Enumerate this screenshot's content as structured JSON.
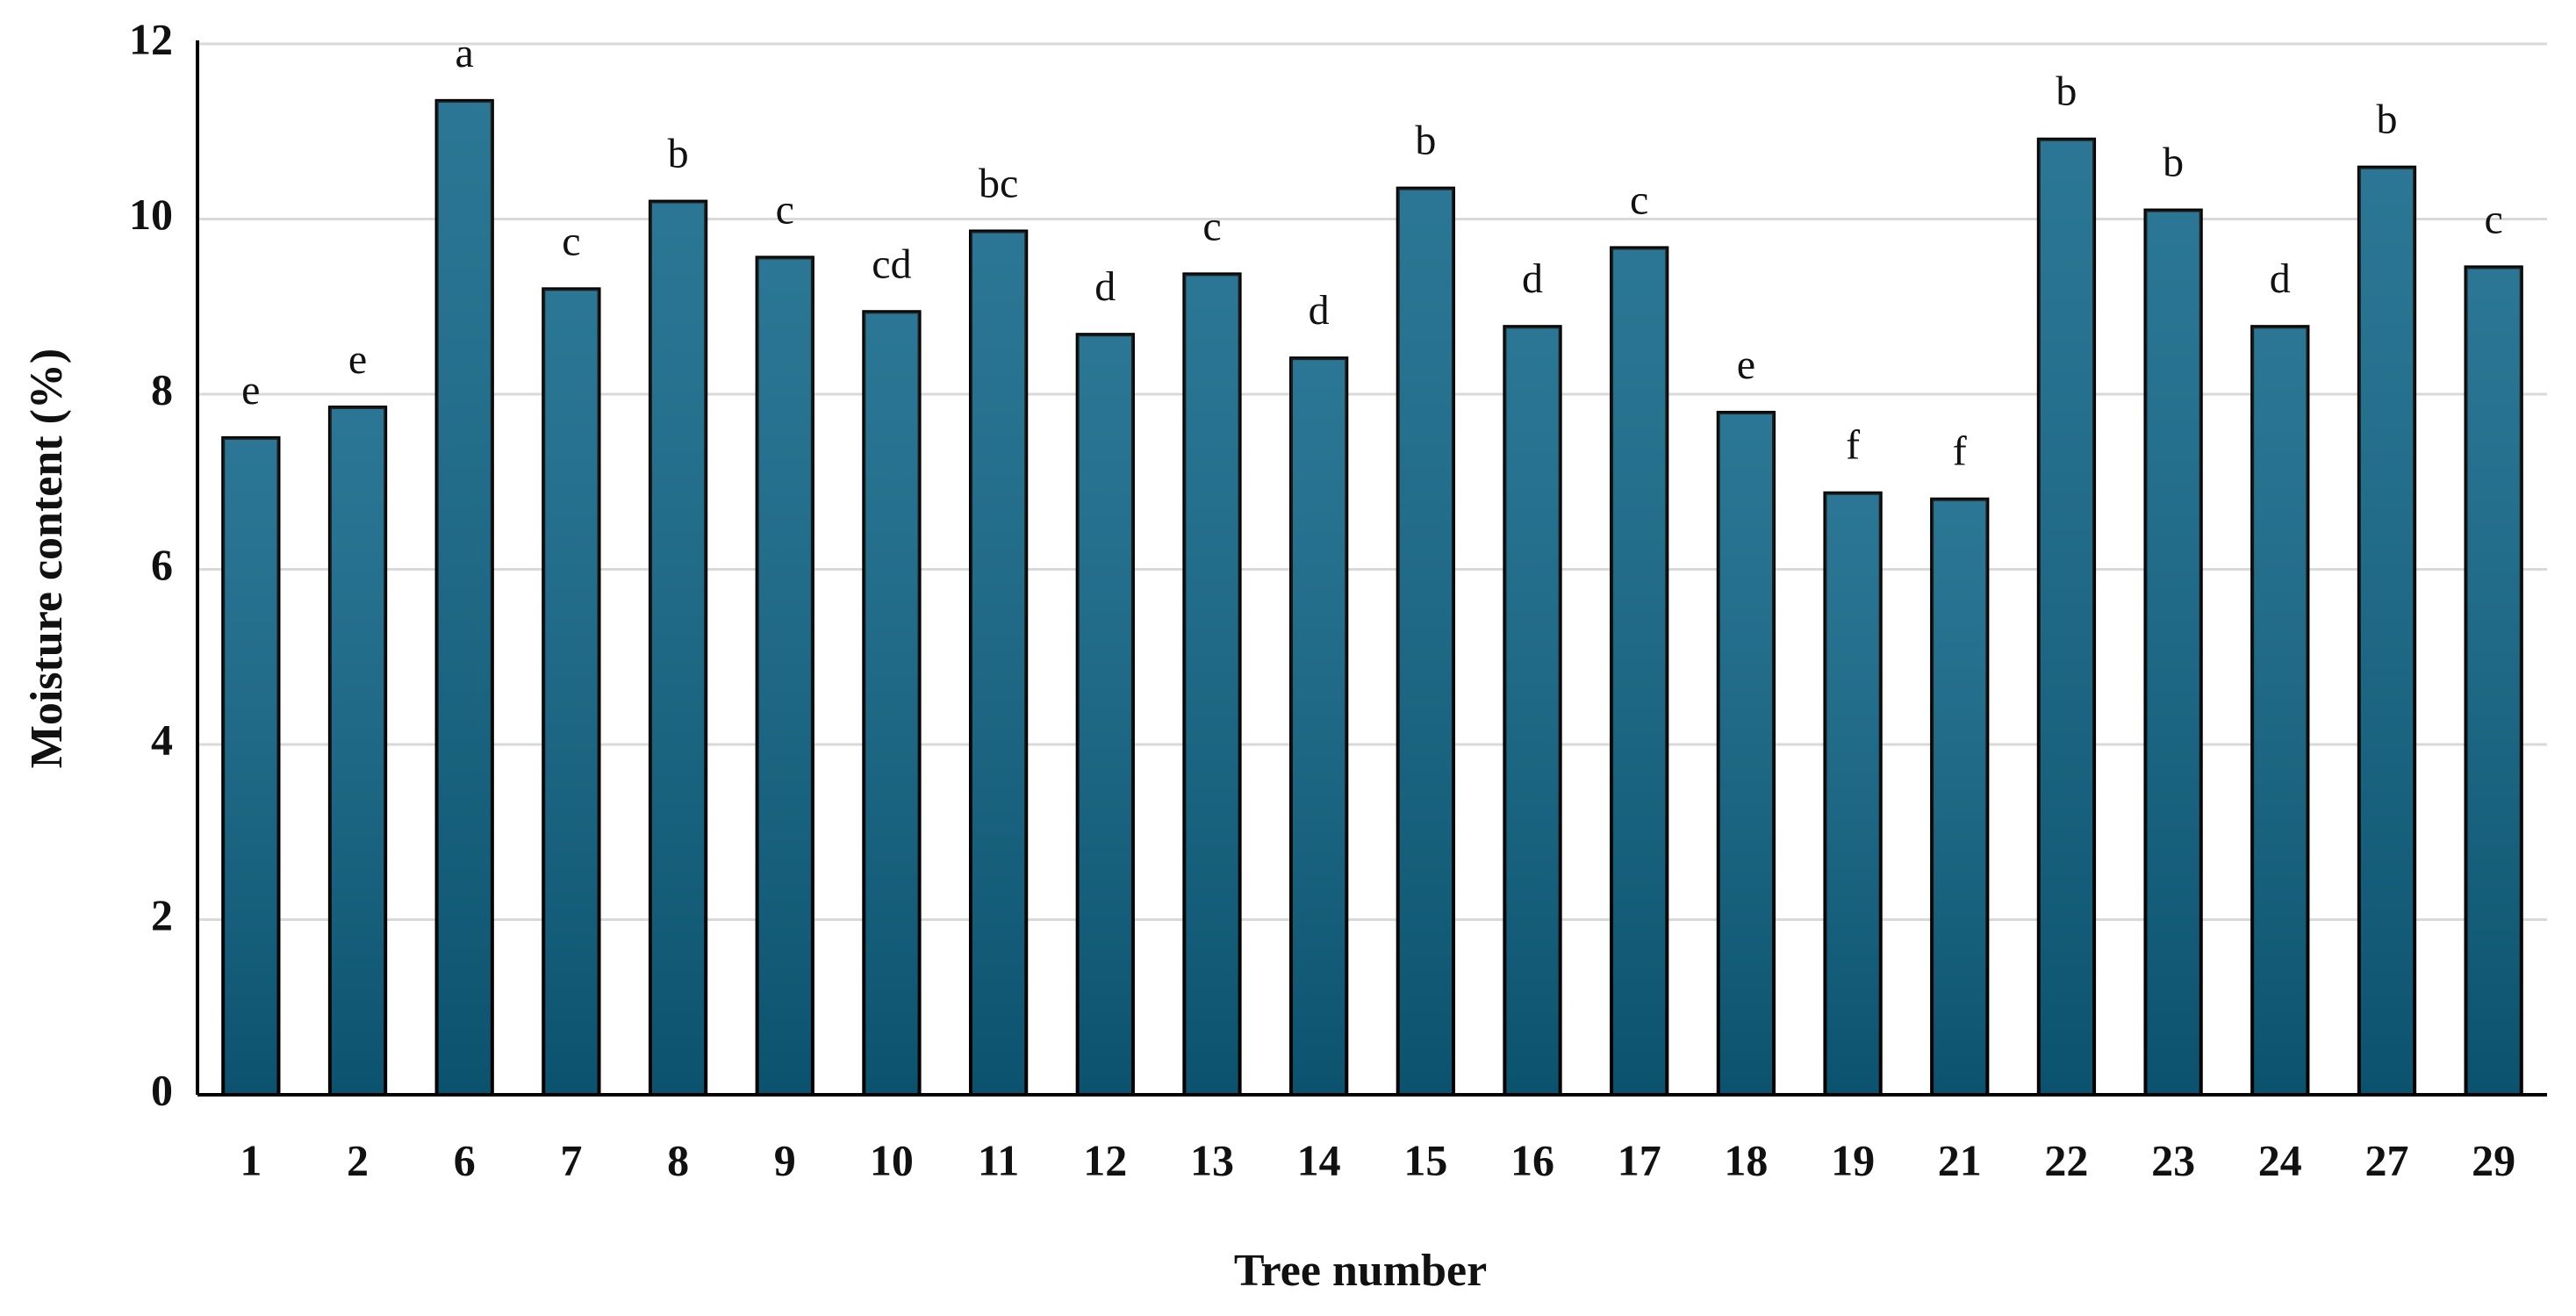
{
  "chart_data": {
    "type": "bar",
    "x_label": "Tree number",
    "y_label": "Moisture content (%)",
    "categories": [
      "1",
      "2",
      "6",
      "7",
      "8",
      "9",
      "10",
      "11",
      "12",
      "13",
      "14",
      "15",
      "16",
      "17",
      "18",
      "19",
      "21",
      "22",
      "23",
      "24",
      "27",
      "29"
    ],
    "values": [
      7.5,
      7.85,
      11.35,
      9.2,
      10.2,
      9.56,
      8.94,
      9.86,
      8.68,
      9.37,
      8.41,
      10.35,
      8.77,
      9.67,
      7.79,
      6.87,
      6.8,
      10.91,
      10.1,
      8.77,
      10.59,
      9.45
    ],
    "annotations": [
      "e",
      "e",
      "a",
      "c",
      "b",
      "c",
      "cd",
      "bc",
      "d",
      "c",
      "d",
      "b",
      "d",
      "c",
      "e",
      "f",
      "f",
      "b",
      "b",
      "d",
      "b",
      "c"
    ],
    "color": "#0d6486",
    "ylim": [
      0,
      12
    ],
    "yticks": [
      0,
      2,
      4,
      6,
      8,
      10,
      12
    ],
    "grid": true
  }
}
